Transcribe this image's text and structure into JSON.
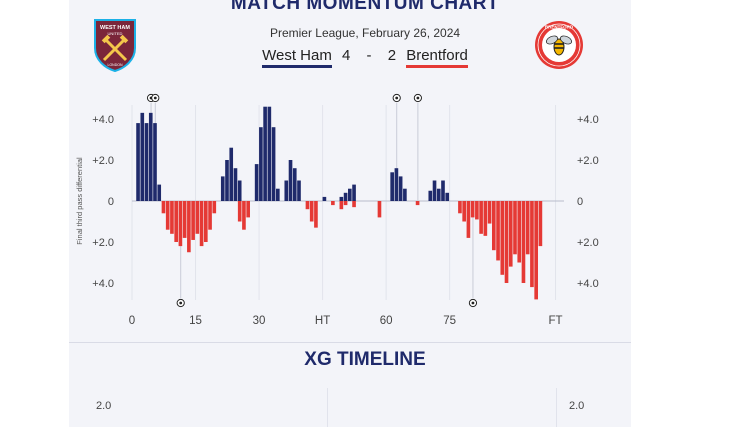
{
  "header": {
    "title": "MATCH MOMENTUM CHART",
    "competition_date": "Premier League, February 26, 2024",
    "home_team": "West Ham",
    "home_score": "4",
    "separator": "-",
    "away_score": "2",
    "away_team": "Brentford",
    "home_crest_text": "WEST HAM UNITED",
    "away_crest_text": "BRENTFORD"
  },
  "colors": {
    "home": "#1f2a6b",
    "away": "#e53935",
    "title": "#1f2a6b"
  },
  "chart_data": {
    "type": "bar",
    "ylabel": "Final third pass differential",
    "ylim": [
      -5.0,
      5.0
    ],
    "y_ticks": [
      4.0,
      2.0,
      0,
      -2.0,
      -4.0
    ],
    "y_tick_labels": [
      "+4.0",
      "+2.0",
      "0",
      "+2.0",
      "+4.0"
    ],
    "xlim": [
      0,
      102
    ],
    "x_ticks": [
      0,
      15,
      30,
      45,
      60,
      75,
      100
    ],
    "x_tick_labels": [
      "0",
      "15",
      "30",
      "HT",
      "60",
      "75",
      "FT"
    ],
    "series": [
      {
        "team": "home",
        "bars": [
          [
            1,
            3.8
          ],
          [
            2,
            4.3
          ],
          [
            3,
            3.8
          ],
          [
            4,
            4.3
          ],
          [
            5,
            3.8
          ],
          [
            6,
            0.8
          ],
          [
            21,
            1.2
          ],
          [
            22,
            2.0
          ],
          [
            23,
            2.6
          ],
          [
            24,
            1.6
          ],
          [
            25,
            1.0
          ],
          [
            29,
            1.8
          ],
          [
            30,
            3.6
          ],
          [
            31,
            4.6
          ],
          [
            32,
            4.6
          ],
          [
            33,
            3.6
          ],
          [
            34,
            0.6
          ],
          [
            36,
            1.0
          ],
          [
            37,
            2.0
          ],
          [
            38,
            1.6
          ],
          [
            39,
            1.0
          ],
          [
            45,
            0.2
          ],
          [
            49,
            0.2
          ],
          [
            50,
            0.4
          ],
          [
            51,
            0.6
          ],
          [
            52,
            0.8
          ],
          [
            61,
            1.4
          ],
          [
            62,
            1.6
          ],
          [
            63,
            1.2
          ],
          [
            64,
            0.6
          ],
          [
            70,
            0.5
          ],
          [
            71,
            1.0
          ],
          [
            72,
            0.6
          ],
          [
            73,
            1.0
          ],
          [
            74,
            0.4
          ]
        ]
      },
      {
        "team": "away",
        "bars": [
          [
            7,
            -0.6
          ],
          [
            8,
            -1.4
          ],
          [
            9,
            -1.6
          ],
          [
            10,
            -2.0
          ],
          [
            11,
            -2.2
          ],
          [
            12,
            -1.8
          ],
          [
            13,
            -2.5
          ],
          [
            14,
            -1.9
          ],
          [
            15,
            -1.6
          ],
          [
            16,
            -2.2
          ],
          [
            17,
            -2.0
          ],
          [
            18,
            -1.4
          ],
          [
            19,
            -0.6
          ],
          [
            25,
            -1.0
          ],
          [
            26,
            -1.4
          ],
          [
            27,
            -0.8
          ],
          [
            41,
            -0.4
          ],
          [
            42,
            -1.0
          ],
          [
            43,
            -1.3
          ],
          [
            47,
            -0.2
          ],
          [
            49,
            -0.4
          ],
          [
            50,
            -0.2
          ],
          [
            52,
            -0.3
          ],
          [
            58,
            -0.8
          ],
          [
            67,
            -0.2
          ],
          [
            77,
            -0.6
          ],
          [
            78,
            -1.0
          ],
          [
            79,
            -1.8
          ],
          [
            80,
            -0.8
          ],
          [
            81,
            -0.9
          ],
          [
            82,
            -1.6
          ],
          [
            83,
            -1.7
          ],
          [
            84,
            -1.1
          ],
          [
            85,
            -2.4
          ],
          [
            86,
            -2.9
          ],
          [
            87,
            -3.6
          ],
          [
            88,
            -4.0
          ],
          [
            89,
            -3.2
          ],
          [
            90,
            -2.6
          ],
          [
            91,
            -3.0
          ],
          [
            92,
            -4.0
          ],
          [
            93,
            -2.6
          ],
          [
            94,
            -4.2
          ],
          [
            95,
            -4.8
          ],
          [
            96,
            -2.2
          ]
        ]
      }
    ],
    "goals": [
      {
        "team": "home",
        "minute": 4
      },
      {
        "team": "home",
        "minute": 5
      },
      {
        "team": "home",
        "minute": 62
      },
      {
        "team": "home",
        "minute": 67
      },
      {
        "team": "away",
        "minute": 11
      },
      {
        "team": "away",
        "minute": 80
      }
    ]
  },
  "xg": {
    "title": "XG TIMELINE",
    "tick_left": "2.0",
    "tick_right": "2.0"
  }
}
